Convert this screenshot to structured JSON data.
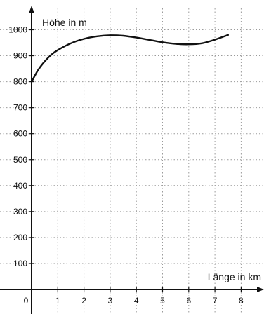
{
  "chart_data": {
    "type": "line",
    "title": "",
    "xlabel": "Länge in km",
    "ylabel": "Höhe in m",
    "xlim": [
      0,
      8
    ],
    "ylim": [
      0,
      1000
    ],
    "grid": true,
    "x_ticks": [
      0,
      1,
      2,
      3,
      4,
      5,
      6,
      7,
      8
    ],
    "x_tick_labels": [
      "0",
      "1",
      "2",
      "3",
      "4",
      "5",
      "6",
      "7",
      "8"
    ],
    "y_ticks": [
      100,
      200,
      300,
      400,
      500,
      600,
      700,
      800,
      900,
      1000
    ],
    "y_tick_labels": [
      "100",
      "200",
      "300",
      "400",
      "500",
      "600",
      "700",
      "800",
      "900",
      "1000"
    ],
    "series": [
      {
        "color": "#111111",
        "x": [
          0,
          0.25,
          0.5,
          0.75,
          1,
          1.5,
          2,
          2.5,
          3,
          3.5,
          4,
          4.5,
          5,
          5.5,
          6,
          6.5,
          7,
          7.5
        ],
        "y": [
          800,
          845,
          878,
          904,
          922,
          948,
          965,
          975,
          979,
          977,
          970,
          961,
          952,
          946,
          944,
          948,
          962,
          980
        ]
      }
    ]
  }
}
